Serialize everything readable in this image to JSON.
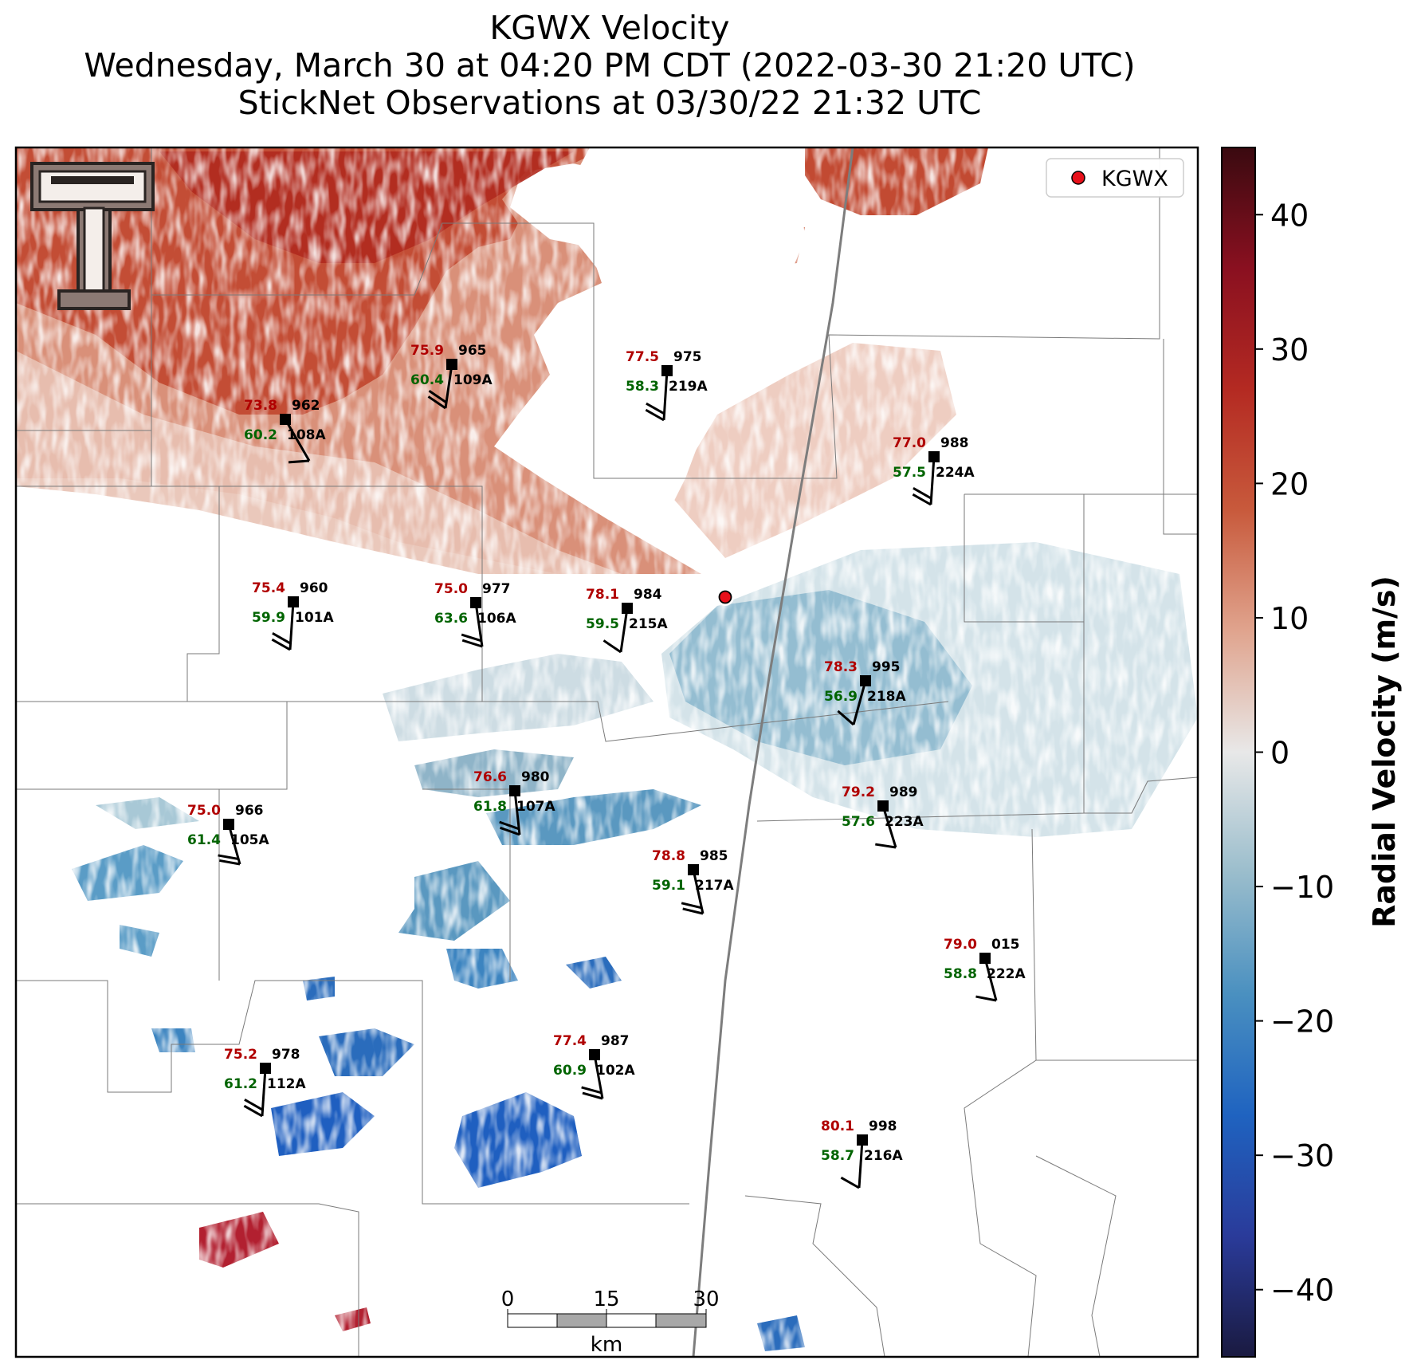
{
  "title": {
    "line1": "KGWX Velocity",
    "line2": "Wednesday, March 30 at 04:20 PM CDT (2022-03-30 21:20 UTC)",
    "line3": "StickNet Observations at 03/30/22 21:32 UTC"
  },
  "legend": {
    "label": "KGWX",
    "marker_color": "#e8101a"
  },
  "radar": {
    "name": "KGWX"
  },
  "colorbar": {
    "label": "Radial Velocity (m/s)",
    "range": [
      -45,
      45
    ],
    "ticks": [
      {
        "value": 40,
        "label": "40"
      },
      {
        "value": 30,
        "label": "30"
      },
      {
        "value": 20,
        "label": "20"
      },
      {
        "value": 10,
        "label": "10"
      },
      {
        "value": 0,
        "label": "0"
      },
      {
        "value": -10,
        "label": "−10"
      },
      {
        "value": -20,
        "label": "−20"
      },
      {
        "value": -30,
        "label": "−30"
      },
      {
        "value": -40,
        "label": "−40"
      }
    ],
    "colors": [
      "#1a1a40",
      "#2a3b9a",
      "#1f63c0",
      "#4a90c0",
      "#9abdcc",
      "#e8e8e8",
      "#e0a48e",
      "#c85a3c",
      "#b42a22",
      "#8a1020",
      "#3a0a10"
    ]
  },
  "scale_bar": {
    "ticks": [
      "0",
      "15",
      "30"
    ],
    "unit": "km"
  },
  "colors": {
    "temp": "#b00000",
    "dew": "#006400",
    "station": "#000000"
  },
  "stations": [
    {
      "id": "109A",
      "temp": "75.9",
      "dew": "60.4",
      "pres": "965"
    },
    {
      "id": "219A",
      "temp": "77.5",
      "dew": "58.3",
      "pres": "975"
    },
    {
      "id": "108A",
      "temp": "73.8",
      "dew": "60.2",
      "pres": "962"
    },
    {
      "id": "224A",
      "temp": "77.0",
      "dew": "57.5",
      "pres": "988"
    },
    {
      "id": "101A",
      "temp": "75.4",
      "dew": "59.9",
      "pres": "960"
    },
    {
      "id": "106A",
      "temp": "75.0",
      "dew": "63.6",
      "pres": "977"
    },
    {
      "id": "215A",
      "temp": "78.1",
      "dew": "59.5",
      "pres": "984"
    },
    {
      "id": "218A",
      "temp": "78.3",
      "dew": "56.9",
      "pres": "995"
    },
    {
      "id": "107A",
      "temp": "76.6",
      "dew": "61.8",
      "pres": "980"
    },
    {
      "id": "223A",
      "temp": "79.2",
      "dew": "57.6",
      "pres": "989"
    },
    {
      "id": "105A",
      "temp": "75.0",
      "dew": "61.4",
      "pres": "966"
    },
    {
      "id": "217A",
      "temp": "78.8",
      "dew": "59.1",
      "pres": "985"
    },
    {
      "id": "222A",
      "temp": "79.0",
      "dew": "58.8",
      "pres": "015"
    },
    {
      "id": "102A",
      "temp": "77.4",
      "dew": "60.9",
      "pres": "987"
    },
    {
      "id": "112A",
      "temp": "75.2",
      "dew": "61.2",
      "pres": "978"
    },
    {
      "id": "216A",
      "temp": "80.1",
      "dew": "58.7",
      "pres": "998"
    }
  ]
}
